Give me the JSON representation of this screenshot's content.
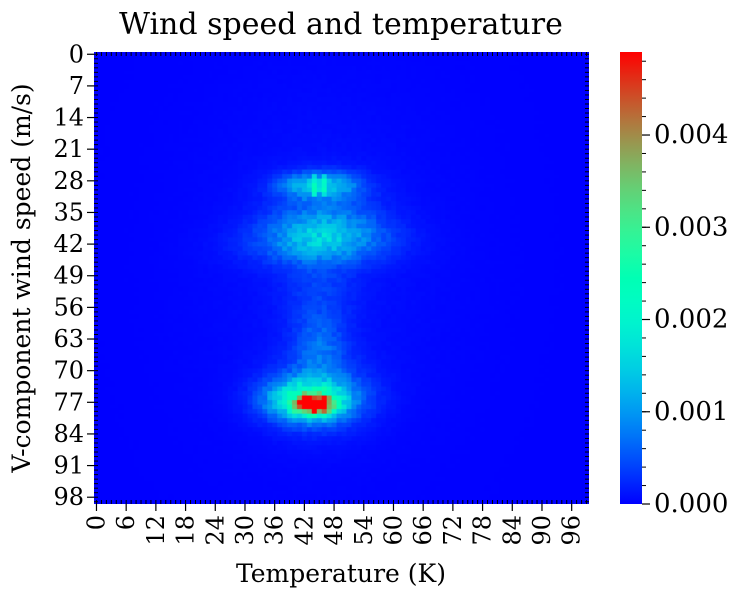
{
  "chart_data": {
    "type": "heatmap",
    "title": "Wind speed and temperature",
    "xlabel": "Temperature (K)",
    "ylabel": "V-component wind speed (m/s)",
    "x_range": [
      0,
      99
    ],
    "y_range": [
      0,
      99
    ],
    "x_ticks": [
      "0",
      "6",
      "12",
      "18",
      "24",
      "30",
      "36",
      "42",
      "48",
      "54",
      "60",
      "66",
      "72",
      "78",
      "84",
      "90",
      "96"
    ],
    "y_ticks": [
      "0",
      "7",
      "14",
      "21",
      "28",
      "35",
      "42",
      "49",
      "56",
      "63",
      "70",
      "77",
      "84",
      "91",
      "98"
    ],
    "colormap": "rainbow",
    "colorbar": {
      "range": [
        0,
        0.0049
      ],
      "ticks": [
        "0.000",
        "0.001",
        "0.002",
        "0.003",
        "0.004"
      ]
    },
    "density_peaks": [
      {
        "x": 44,
        "y": 77.5,
        "value": 0.0049
      },
      {
        "x": 45,
        "y": 29,
        "value": 0.0023
      },
      {
        "x": 46,
        "y": 40,
        "value": 0.0018
      },
      {
        "x": 45,
        "y": 65,
        "value": 0.0009
      },
      {
        "x": 45,
        "y": 52,
        "value": 0.0005
      }
    ]
  }
}
